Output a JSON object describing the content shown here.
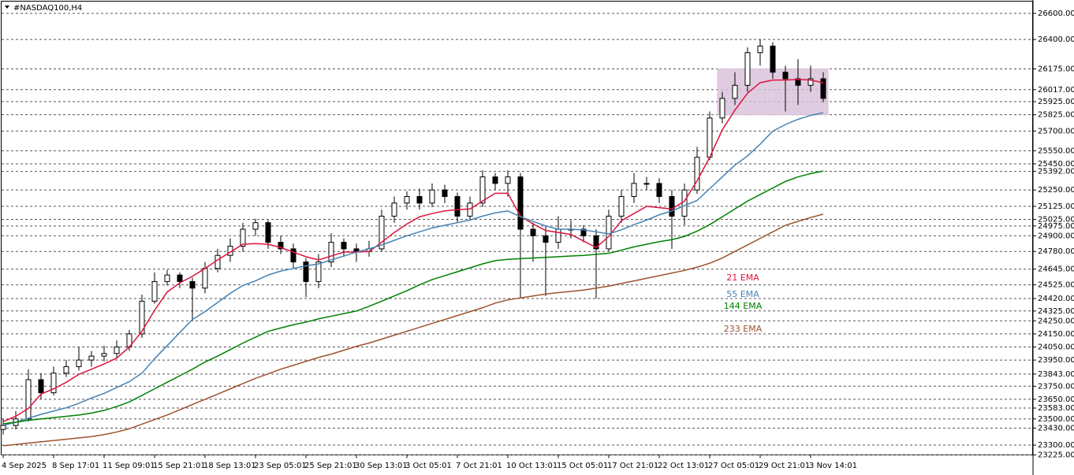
{
  "chart_data": {
    "type": "candlestick",
    "title": "#NASDAQ100,H4",
    "categories": [
      "4 Sep 2025",
      null,
      null,
      null,
      "8 Sep 17:01",
      null,
      null,
      null,
      "11 Sep 09:01",
      null,
      null,
      null,
      "15 Sep 21:01",
      null,
      null,
      null,
      "18 Sep 13:01",
      null,
      null,
      null,
      "23 Sep 05:01",
      null,
      null,
      null,
      "25 Sep 21:01",
      null,
      null,
      null,
      "30 Sep 13:01",
      null,
      null,
      null,
      "3 Oct 05:01",
      null,
      null,
      null,
      "7 Oct 21:01",
      null,
      null,
      null,
      "10 Oct 13:01",
      null,
      null,
      null,
      "15 Oct 05:01",
      null,
      null,
      null,
      "17 Oct 21:01",
      null,
      null,
      null,
      "22 Oct 13:01",
      null,
      null,
      null,
      "27 Oct 05:01",
      null,
      null,
      null,
      "29 Oct 21:01",
      null,
      null,
      null,
      "3 Nov 14:01",
      null
    ],
    "open": [
      23420,
      23450,
      23500,
      23800,
      23700,
      23850,
      23900,
      23950,
      23980,
      24000,
      24050,
      24150,
      24400,
      24550,
      24600,
      24550,
      24500,
      24650,
      24750,
      24820,
      24950,
      25000,
      24850,
      24800,
      24700,
      24550,
      24700,
      24850,
      24800,
      24780,
      24800,
      25050,
      25150,
      25200,
      25150,
      25250,
      25200,
      25050,
      25150,
      25350,
      25300,
      25350,
      24950,
      24900,
      24850,
      24950,
      24950,
      24900,
      24800,
      25050,
      25200,
      25300,
      25300,
      25200,
      25050,
      25250,
      25500,
      25800,
      25950,
      26050,
      26300,
      26350,
      26150,
      26100,
      26050,
      26100
    ],
    "high": [
      23500,
      23560,
      23880,
      23850,
      23900,
      23950,
      24050,
      24020,
      24060,
      24100,
      24180,
      24450,
      24620,
      24640,
      24620,
      24580,
      24700,
      24800,
      24880,
      25000,
      25030,
      25020,
      24900,
      24840,
      24730,
      24760,
      24920,
      24880,
      24840,
      24860,
      25100,
      25200,
      25240,
      25260,
      25300,
      25290,
      25230,
      25200,
      25400,
      25380,
      25400,
      25380,
      25000,
      24980,
      25050,
      25020,
      24980,
      24950,
      25100,
      25250,
      25380,
      25350,
      25340,
      25250,
      25300,
      25580,
      25850,
      26000,
      26150,
      26340,
      26400,
      26380,
      26200,
      26250,
      26200,
      26150
    ],
    "low": [
      23380,
      23420,
      23480,
      23650,
      23680,
      23820,
      23870,
      23900,
      23940,
      23960,
      24020,
      24120,
      24380,
      24520,
      24500,
      24250,
      24460,
      24620,
      24700,
      24780,
      24900,
      24800,
      24760,
      24650,
      24430,
      24500,
      24660,
      24740,
      24700,
      24740,
      24780,
      25000,
      25100,
      25100,
      25120,
      25150,
      25000,
      25020,
      25120,
      25250,
      25200,
      24420,
      24700,
      24440,
      24800,
      24880,
      24850,
      24420,
      24780,
      25000,
      25150,
      25250,
      25150,
      24800,
      24980,
      25220,
      25480,
      25760,
      25900,
      26000,
      26200,
      26100,
      25850,
      25900,
      26000,
      25920
    ],
    "close": [
      23450,
      23500,
      23800,
      23700,
      23850,
      23900,
      23950,
      23980,
      24000,
      24050,
      24150,
      24400,
      24550,
      24600,
      24550,
      24500,
      24650,
      24750,
      24820,
      24950,
      25000,
      24850,
      24800,
      24700,
      24550,
      24700,
      24850,
      24800,
      24780,
      24800,
      25050,
      25150,
      25200,
      25150,
      25250,
      25200,
      25050,
      25150,
      25350,
      25300,
      25350,
      24950,
      24900,
      24850,
      24950,
      24950,
      24900,
      24800,
      25050,
      25200,
      25300,
      25300,
      25200,
      25050,
      25250,
      25500,
      25800,
      25950,
      26050,
      26300,
      26350,
      26150,
      26100,
      26050,
      26100,
      25950
    ],
    "series": [
      {
        "name": "21 EMA",
        "color": "#dc143c",
        "values": [
          23480,
          23520,
          23580,
          23690,
          23730,
          23780,
          23840,
          23880,
          23920,
          23965,
          24050,
          24170,
          24330,
          24470,
          24540,
          24590,
          24650,
          24715,
          24775,
          24835,
          24840,
          24835,
          24810,
          24775,
          24740,
          24715,
          24745,
          24775,
          24775,
          24780,
          24850,
          24925,
          24990,
          25045,
          25070,
          25090,
          25100,
          25105,
          25165,
          25225,
          25225,
          25050,
          24990,
          24940,
          24925,
          24910,
          24860,
          24810,
          24895,
          25015,
          25070,
          25125,
          25115,
          25105,
          25165,
          25320,
          25500,
          25710,
          25860,
          25990,
          26070,
          26090,
          26090,
          26095,
          26090,
          26070
        ]
      },
      {
        "name": "55 EMA",
        "color": "#4682b4",
        "values": [
          23450,
          23475,
          23505,
          23535,
          23560,
          23585,
          23620,
          23660,
          23695,
          23740,
          23785,
          23850,
          23960,
          24060,
          24160,
          24260,
          24320,
          24390,
          24460,
          24520,
          24555,
          24600,
          24630,
          24650,
          24670,
          24685,
          24715,
          24745,
          24775,
          24800,
          24830,
          24865,
          24900,
          24930,
          24960,
          24980,
          25000,
          25020,
          25050,
          25075,
          25090,
          25045,
          25010,
          24975,
          24950,
          24950,
          24945,
          24930,
          24915,
          24945,
          24985,
          25020,
          25060,
          25090,
          25130,
          25170,
          25260,
          25350,
          25440,
          25510,
          25600,
          25700,
          25750,
          25790,
          25820,
          25840
        ]
      },
      {
        "name": "144 EMA",
        "color": "#008000",
        "values": [
          23463,
          23475,
          23490,
          23500,
          23510,
          23520,
          23530,
          23545,
          23565,
          23595,
          23630,
          23680,
          23730,
          23780,
          23830,
          23880,
          23935,
          23980,
          24030,
          24080,
          24125,
          24170,
          24195,
          24220,
          24240,
          24265,
          24285,
          24305,
          24325,
          24360,
          24400,
          24440,
          24480,
          24525,
          24565,
          24595,
          24625,
          24655,
          24685,
          24710,
          24720,
          24725,
          24730,
          24735,
          24740,
          24745,
          24750,
          24758,
          24766,
          24790,
          24815,
          24835,
          24855,
          24870,
          24895,
          24935,
          24985,
          25045,
          25105,
          25165,
          25215,
          25265,
          25315,
          25350,
          25375,
          25395
        ]
      },
      {
        "name": "233 EMA",
        "color": "#a0522d",
        "values": [
          23295,
          23305,
          23315,
          23325,
          23335,
          23345,
          23355,
          23365,
          23380,
          23400,
          23425,
          23460,
          23495,
          23530,
          23570,
          23610,
          23650,
          23690,
          23730,
          23770,
          23810,
          23845,
          23880,
          23910,
          23940,
          23970,
          23995,
          24025,
          24055,
          24080,
          24110,
          24140,
          24170,
          24200,
          24230,
          24260,
          24290,
          24320,
          24350,
          24385,
          24410,
          24425,
          24440,
          24455,
          24465,
          24475,
          24485,
          24500,
          24515,
          24535,
          24555,
          24575,
          24595,
          24615,
          24635,
          24660,
          24690,
          24730,
          24780,
          24830,
          24880,
          24930,
          24980,
          25010,
          25040,
          25065
        ]
      }
    ],
    "box": {
      "top": 26175,
      "bottom": 25825,
      "from": 57,
      "to": 65,
      "color": "#d8bfd8"
    },
    "ylim": [
      23225,
      26702
    ],
    "yticks": [
      {
        "value": 26600,
        "label": "26600.00"
      },
      {
        "value": 26400,
        "label": "26400.00"
      },
      {
        "value": 26175,
        "label": "26175.00"
      },
      {
        "value": 26017,
        "label": "26017.00"
      },
      {
        "value": 25925,
        "label": "25925.00"
      },
      {
        "value": 25825,
        "label": "25825.00"
      },
      {
        "value": 25700,
        "label": "25700.00"
      },
      {
        "value": 25550,
        "label": "25550.00"
      },
      {
        "value": 25450,
        "label": "25450.00"
      },
      {
        "value": 25392,
        "label": "25392.00"
      },
      {
        "value": 25250,
        "label": "25250.00"
      },
      {
        "value": 25125,
        "label": "25125.00"
      },
      {
        "value": 25025,
        "label": "25025.00"
      },
      {
        "value": 24975,
        "label": "24975.00"
      },
      {
        "value": 24900,
        "label": "24900.00"
      },
      {
        "value": 24780,
        "label": "24780.00"
      },
      {
        "value": 24645,
        "label": "24645.00"
      },
      {
        "value": 24525,
        "label": "24525.00"
      },
      {
        "value": 24420,
        "label": "24420.00"
      },
      {
        "value": 24325,
        "label": "24325.00"
      },
      {
        "value": 24250,
        "label": "24250.00"
      },
      {
        "value": 24150,
        "label": "24150.00"
      },
      {
        "value": 24050,
        "label": "24050.00"
      },
      {
        "value": 23950,
        "label": "23950.00"
      },
      {
        "value": 23843,
        "label": "23843.00"
      },
      {
        "value": 23750,
        "label": "23750.00"
      },
      {
        "value": 23650,
        "label": "23650.00"
      },
      {
        "value": 23583,
        "label": "23583.00"
      },
      {
        "value": 23500,
        "label": "23500.00"
      },
      {
        "value": 23430,
        "label": "23430.00"
      },
      {
        "value": 23300,
        "label": "23300.00"
      },
      {
        "value": 23225,
        "label": "23225.00"
      }
    ],
    "grid": true
  }
}
